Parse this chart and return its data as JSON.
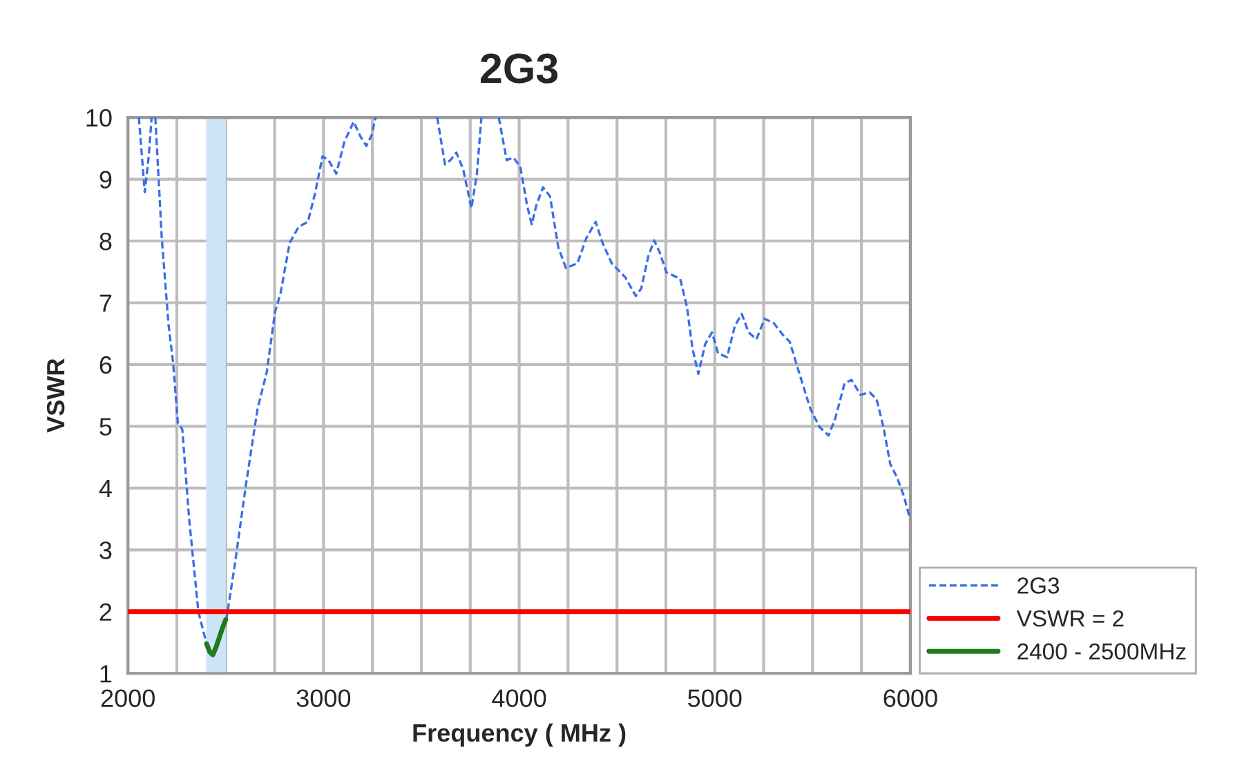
{
  "chart_data": {
    "type": "line",
    "title": "2G3",
    "xlabel": "Frequency ( MHz )",
    "ylabel": "VSWR",
    "xlim": [
      2000,
      6000
    ],
    "ylim": [
      1,
      10
    ],
    "xticks": [
      2000,
      {
        "value": 2250,
        "label": null
      },
      {
        "value": 2500,
        "label": null
      },
      {
        "value": 2750,
        "label": null
      },
      3000,
      {
        "value": 3250,
        "label": null
      },
      {
        "value": 3500,
        "label": null
      },
      {
        "value": 3750,
        "label": null
      },
      4000,
      {
        "value": 4250,
        "label": null
      },
      {
        "value": 4500,
        "label": null
      },
      {
        "value": 4750,
        "label": null
      },
      5000,
      {
        "value": 5250,
        "label": null
      },
      {
        "value": 5500,
        "label": null
      },
      {
        "value": 5750,
        "label": null
      },
      6000
    ],
    "yticks": [
      1,
      2,
      3,
      4,
      5,
      6,
      7,
      8,
      9,
      10
    ],
    "grid": true,
    "legend": "right",
    "marker": "none",
    "series": [
      {
        "name": "2G3",
        "color": "#3a6fe8",
        "line_style": "dashed",
        "x": [
          2056,
          2086,
          2107,
          2121,
          2130,
          2140,
          2173,
          2208,
          2231,
          2255,
          2278,
          2313,
          2360,
          2402,
          2434,
          2465,
          2504,
          2546,
          2605,
          2663,
          2710,
          2752,
          2780,
          2827,
          2873,
          2920,
          2955,
          2995,
          3025,
          3065,
          3107,
          3154,
          3189,
          3219,
          3247,
          3266,
          3420,
          3581,
          3621,
          3649,
          3679,
          3714,
          3756,
          3784,
          3807,
          3850,
          3896,
          3936,
          3971,
          4006,
          4041,
          4064,
          4087,
          4122,
          4158,
          4200,
          4239,
          4298,
          4344,
          4391,
          4426,
          4473,
          4543,
          4596,
          4624,
          4660,
          4690,
          4718,
          4753,
          4823,
          4858,
          4886,
          4916,
          4951,
          4986,
          5017,
          5063,
          5103,
          5138,
          5173,
          5213,
          5255,
          5302,
          5348,
          5383,
          5430,
          5488,
          5535,
          5582,
          5617,
          5664,
          5699,
          5745,
          5792,
          5827,
          5862,
          5897,
          5932,
          5967,
          5995
        ],
        "values": [
          10,
          8.79,
          9.39,
          10,
          null,
          10,
          8.05,
          6.63,
          6.03,
          5.06,
          4.95,
          3.5,
          2.0,
          1.48,
          1.3,
          1.56,
          1.89,
          2.75,
          4.09,
          5.29,
          5.88,
          6.85,
          7.15,
          7.97,
          8.23,
          8.31,
          8.75,
          9.37,
          9.31,
          9.09,
          9.61,
          9.93,
          9.69,
          9.54,
          9.72,
          10,
          null,
          10,
          9.24,
          9.31,
          9.43,
          9.16,
          8.53,
          9.09,
          10,
          null,
          10,
          9.31,
          9.35,
          9.2,
          8.57,
          8.27,
          8.57,
          8.87,
          8.72,
          7.9,
          7.56,
          7.64,
          8.05,
          8.31,
          7.97,
          7.64,
          7.41,
          7.11,
          7.23,
          7.75,
          8.01,
          7.82,
          7.49,
          7.39,
          6.93,
          6.26,
          5.85,
          6.33,
          6.52,
          6.18,
          6.12,
          6.63,
          6.82,
          6.52,
          6.41,
          6.74,
          6.67,
          6.48,
          6.37,
          5.88,
          5.29,
          4.99,
          4.85,
          5.14,
          5.7,
          5.75,
          5.51,
          5.55,
          5.44,
          4.99,
          4.39,
          4.17,
          3.87,
          3.54
        ]
      },
      {
        "name": "VSWR = 2",
        "color": "#ff0000",
        "line_style": "solid",
        "x": [
          2000,
          6000
        ],
        "values": [
          2,
          2
        ]
      },
      {
        "name": "2400 - 2500MHz",
        "color": "#1e7b1e",
        "line_style": "solid",
        "x": [
          2402,
          2418,
          2434,
          2450,
          2465,
          2485,
          2500
        ],
        "values": [
          1.48,
          1.35,
          1.3,
          1.42,
          1.56,
          1.75,
          1.87
        ]
      }
    ],
    "bands": [
      {
        "axis": "x",
        "from": 2400,
        "to": 2500,
        "color": "#cfe4f9"
      }
    ]
  }
}
